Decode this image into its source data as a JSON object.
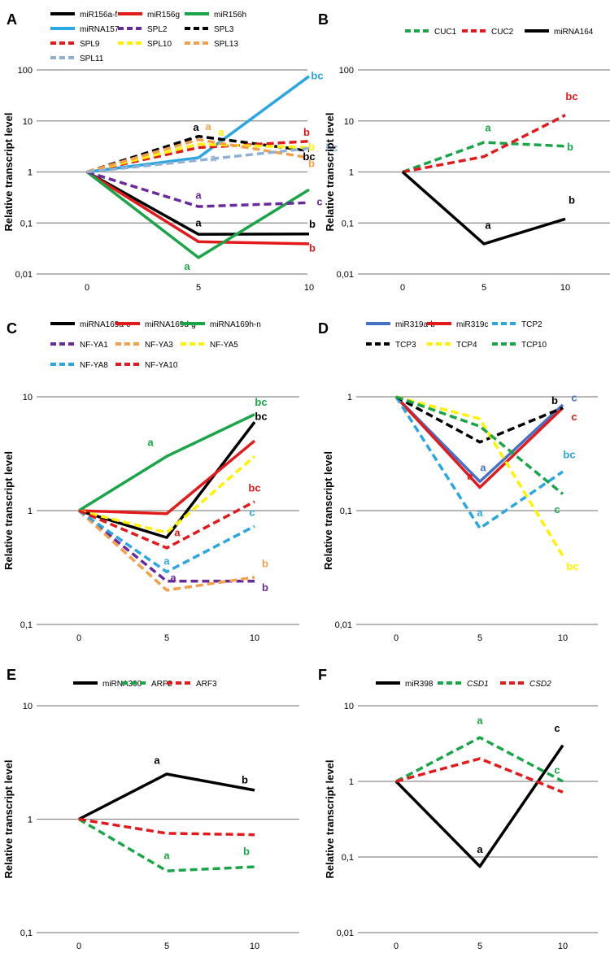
{
  "figure": {
    "y_axis_label": "Relative transcript level"
  },
  "colors": {
    "black": "#000000",
    "red": "#e31a1c",
    "green": "#1aa548",
    "lightblue": "#2aa7e0",
    "purple": "#6a2a9b",
    "yellow": "#fff200",
    "orange": "#f4a04a",
    "grayblue": "#8fb1d3",
    "steelblue": "#4472c4",
    "gridline": "#8c8c8c"
  },
  "chart_data": [
    {
      "panel": "A",
      "type": "line",
      "scale": "log",
      "x": [
        0,
        5,
        10
      ],
      "x_tick_labels": [
        "0",
        "5",
        "10"
      ],
      "y_ticks": [
        0.01,
        0.1,
        1,
        10,
        100
      ],
      "y_tick_labels": [
        "0,01",
        "0,1",
        "1",
        "10",
        "100"
      ],
      "ylim": [
        0.01,
        100
      ],
      "ylabel": "Relative transcript level",
      "series": [
        {
          "name": "miR156a-f",
          "values": [
            1,
            0.06,
            0.061
          ],
          "color": "black",
          "dash": false
        },
        {
          "name": "miR156g",
          "values": [
            1,
            0.043,
            0.039
          ],
          "color": "red",
          "dash": false
        },
        {
          "name": "miR156h",
          "values": [
            1,
            0.021,
            0.45
          ],
          "color": "green",
          "dash": false
        },
        {
          "name": "miRNA157",
          "values": [
            1,
            1.9,
            75
          ],
          "color": "lightblue",
          "dash": false
        },
        {
          "name": "SPL2",
          "values": [
            1,
            0.21,
            0.25
          ],
          "color": "purple",
          "dash": true
        },
        {
          "name": "SPL3",
          "values": [
            1,
            5.0,
            2.6
          ],
          "color": "black",
          "dash": true
        },
        {
          "name": "SPL9",
          "values": [
            1,
            3.0,
            4.0
          ],
          "color": "red",
          "dash": true
        },
        {
          "name": "SPL10",
          "values": [
            1,
            3.5,
            3.0
          ],
          "color": "yellow",
          "dash": true
        },
        {
          "name": "SPL13",
          "values": [
            1,
            4.3,
            1.9
          ],
          "color": "orange",
          "dash": true
        },
        {
          "name": "SPL11",
          "values": [
            1,
            1.7,
            2.9
          ],
          "color": "grayblue",
          "dash": true
        }
      ],
      "annotations": [
        {
          "text": "bc",
          "x": 10,
          "y": 75,
          "color": "lightblue",
          "dx": 10,
          "dy": 0
        },
        {
          "text": "a",
          "x": 5,
          "y": 5.0,
          "color": "black",
          "dx": -3,
          "dy": -10
        },
        {
          "text": "a",
          "x": 5,
          "y": 4.3,
          "color": "orange",
          "dx": 12,
          "dy": -15
        },
        {
          "text": "a",
          "x": 5,
          "y": 3.5,
          "color": "yellow",
          "dx": 28,
          "dy": -14
        },
        {
          "text": "a",
          "x": 5,
          "y": 1.7,
          "color": "grayblue",
          "dx": 18,
          "dy": -2
        },
        {
          "text": "b",
          "x": 10,
          "y": 4.0,
          "color": "red",
          "dx": -3,
          "dy": -10
        },
        {
          "text": "b",
          "x": 10,
          "y": 3.0,
          "color": "yellow",
          "dx": 3,
          "dy": 0
        },
        {
          "text": "bc",
          "x": 10,
          "y": 2.6,
          "color": "black",
          "dx": 0,
          "dy": 8
        },
        {
          "text": "bc",
          "x": 10,
          "y": 2.9,
          "color": "grayblue",
          "dx": 28,
          "dy": 0
        },
        {
          "text": "b",
          "x": 10,
          "y": 1.9,
          "color": "orange",
          "dx": 3,
          "dy": 8
        },
        {
          "text": "a",
          "x": 5,
          "y": 0.21,
          "color": "purple",
          "dx": 0,
          "dy": -13
        },
        {
          "text": "c",
          "x": 10,
          "y": 0.25,
          "color": "purple",
          "dx": 13,
          "dy": 0
        },
        {
          "text": "a",
          "x": 5,
          "y": 0.06,
          "color": "black",
          "dx": 0,
          "dy": -13
        },
        {
          "text": "b",
          "x": 10,
          "y": 0.061,
          "color": "black",
          "dx": 4,
          "dy": -11
        },
        {
          "text": "b",
          "x": 10,
          "y": 0.039,
          "color": "red",
          "dx": 4,
          "dy": 6
        },
        {
          "text": "a",
          "x": 5,
          "y": 0.021,
          "color": "green",
          "dx": -14,
          "dy": 12
        }
      ]
    },
    {
      "panel": "B",
      "type": "line",
      "scale": "log",
      "x": [
        0,
        5,
        10
      ],
      "x_tick_labels": [
        "0",
        "5",
        "10"
      ],
      "y_ticks": [
        0.01,
        0.1,
        1,
        10,
        100
      ],
      "y_tick_labels": [
        "0,01",
        "0,1",
        "1",
        "10",
        "100"
      ],
      "ylim": [
        0.01,
        100
      ],
      "ylabel": "Relative transcript level",
      "series": [
        {
          "name": "CUC1",
          "values": [
            1,
            3.8,
            3.2
          ],
          "color": "green",
          "dash": true
        },
        {
          "name": "CUC2",
          "values": [
            1,
            2.0,
            13
          ],
          "color": "red",
          "dash": true
        },
        {
          "name": "miRNA164",
          "values": [
            1,
            0.039,
            0.12
          ],
          "color": "black",
          "dash": false
        }
      ],
      "annotations": [
        {
          "text": "bc",
          "x": 10,
          "y": 13,
          "color": "red",
          "dx": 8,
          "dy": -22
        },
        {
          "text": "a",
          "x": 5,
          "y": 3.8,
          "color": "green",
          "dx": 5,
          "dy": -17
        },
        {
          "text": "b",
          "x": 10,
          "y": 3.2,
          "color": "green",
          "dx": 6,
          "dy": 2
        },
        {
          "text": "b",
          "x": 10,
          "y": 0.12,
          "color": "black",
          "dx": 8,
          "dy": -22
        },
        {
          "text": "a",
          "x": 5,
          "y": 0.039,
          "color": "black",
          "dx": 5,
          "dy": -22
        }
      ]
    },
    {
      "panel": "C",
      "type": "line",
      "scale": "log",
      "x": [
        0,
        5,
        10
      ],
      "x_tick_labels": [
        "0",
        "5",
        "10"
      ],
      "y_ticks": [
        0.1,
        1,
        10
      ],
      "y_tick_labels": [
        "0,1",
        "1",
        "10"
      ],
      "ylim": [
        0.1,
        10
      ],
      "ylabel": "Relative transcript level",
      "series": [
        {
          "name": "miRNA169a-c",
          "values": [
            1,
            0.58,
            6.0
          ],
          "color": "black",
          "dash": false
        },
        {
          "name": "miRNA169d-g",
          "values": [
            1,
            0.94,
            4.1
          ],
          "color": "red",
          "dash": false
        },
        {
          "name": "miRNA169h-n",
          "values": [
            1,
            3.0,
            7.0
          ],
          "color": "green",
          "dash": false
        },
        {
          "name": "NF-YA1",
          "values": [
            1,
            0.24,
            0.24
          ],
          "color": "purple",
          "dash": true
        },
        {
          "name": "NF-YA3",
          "values": [
            1,
            0.2,
            0.26
          ],
          "color": "orange",
          "dash": true
        },
        {
          "name": "NF-YA5",
          "values": [
            1,
            0.64,
            3.0
          ],
          "color": "yellow",
          "dash": true
        },
        {
          "name": "NF-YA8",
          "values": [
            1,
            0.29,
            0.73
          ],
          "color": "lightblue",
          "dash": true
        },
        {
          "name": "NF-YA10",
          "values": [
            1,
            0.47,
            1.2
          ],
          "color": "red",
          "dash": true
        }
      ],
      "annotations": [
        {
          "text": "bc",
          "x": 10,
          "y": 7.0,
          "color": "green",
          "dx": 8,
          "dy": -14
        },
        {
          "text": "bc",
          "x": 10,
          "y": 6.0,
          "color": "black",
          "dx": 8,
          "dy": -6
        },
        {
          "text": "a",
          "x": 5,
          "y": 3.0,
          "color": "green",
          "dx": -20,
          "dy": -16
        },
        {
          "text": "bc",
          "x": 10,
          "y": 1.2,
          "color": "red",
          "dx": 0,
          "dy": -16
        },
        {
          "text": "a",
          "x": 5,
          "y": 0.58,
          "color": "red",
          "dx": 13,
          "dy": -5
        },
        {
          "text": "c",
          "x": 10,
          "y": 0.73,
          "color": "lightblue",
          "dx": -3,
          "dy": -16
        },
        {
          "text": "a",
          "x": 5,
          "y": 0.29,
          "color": "lightblue",
          "dx": 0,
          "dy": -12
        },
        {
          "text": "a",
          "x": 5,
          "y": 0.24,
          "color": "purple",
          "dx": 8,
          "dy": -3
        },
        {
          "text": "b",
          "x": 10,
          "y": 0.26,
          "color": "orange",
          "dx": 13,
          "dy": -16
        },
        {
          "text": "b",
          "x": 10,
          "y": 0.24,
          "color": "purple",
          "dx": 13,
          "dy": 9
        }
      ]
    },
    {
      "panel": "D",
      "type": "line",
      "scale": "log",
      "x": [
        0,
        5,
        10
      ],
      "x_tick_labels": [
        "0",
        "5",
        "10"
      ],
      "y_ticks": [
        0.01,
        0.1,
        1
      ],
      "y_tick_labels": [
        "0,01",
        "0,1",
        "1"
      ],
      "ylim": [
        0.01,
        1
      ],
      "ylabel": "Relative transcript level",
      "series": [
        {
          "name": "miR319a-b",
          "values": [
            1,
            0.18,
            0.85
          ],
          "color": "steelblue",
          "dash": false
        },
        {
          "name": "miR319c",
          "values": [
            1,
            0.16,
            0.8
          ],
          "color": "red",
          "dash": false
        },
        {
          "name": "TCP2",
          "values": [
            1,
            0.07,
            0.22
          ],
          "color": "lightblue",
          "dash": true
        },
        {
          "name": "TCP3",
          "values": [
            1,
            0.4,
            0.8
          ],
          "color": "black",
          "dash": true
        },
        {
          "name": "TCP4",
          "values": [
            1,
            0.64,
            0.04
          ],
          "color": "yellow",
          "dash": true
        },
        {
          "name": "TCP10",
          "values": [
            1,
            0.55,
            0.14
          ],
          "color": "green",
          "dash": true
        }
      ],
      "annotations": [
        {
          "text": "b",
          "x": 10,
          "y": 0.8,
          "color": "black",
          "dx": -10,
          "dy": -8
        },
        {
          "text": "c",
          "x": 10,
          "y": 0.85,
          "color": "steelblue",
          "dx": 14,
          "dy": -8
        },
        {
          "text": "c",
          "x": 10,
          "y": 0.8,
          "color": "red",
          "dx": 14,
          "dy": 12
        },
        {
          "text": "bc",
          "x": 10,
          "y": 0.22,
          "color": "lightblue",
          "dx": 8,
          "dy": -20
        },
        {
          "text": "a",
          "x": 5,
          "y": 0.16,
          "color": "red",
          "dx": -12,
          "dy": -13
        },
        {
          "text": "a",
          "x": 5,
          "y": 0.18,
          "color": "steelblue",
          "dx": 4,
          "dy": -16
        },
        {
          "text": "c",
          "x": 10,
          "y": 0.14,
          "color": "green",
          "dx": -7,
          "dy": 20
        },
        {
          "text": "a",
          "x": 5,
          "y": 0.07,
          "color": "lightblue",
          "dx": 0,
          "dy": -18
        },
        {
          "text": "bc",
          "x": 10,
          "y": 0.04,
          "color": "yellow",
          "dx": 12,
          "dy": 14
        }
      ]
    },
    {
      "panel": "E",
      "type": "line",
      "scale": "log",
      "x": [
        0,
        5,
        10
      ],
      "x_tick_labels": [
        "0",
        "5",
        "10"
      ],
      "y_ticks": [
        0.1,
        1,
        10
      ],
      "y_tick_labels": [
        "0,1",
        "1",
        "10"
      ],
      "ylim": [
        0.1,
        10
      ],
      "ylabel": "Relative transcript level",
      "series": [
        {
          "name": "miRNA390",
          "values": [
            1,
            2.5,
            1.8
          ],
          "color": "black",
          "dash": false
        },
        {
          "name": "ARF2",
          "values": [
            1,
            0.35,
            0.38
          ],
          "color": "green",
          "dash": true
        },
        {
          "name": "ARF3",
          "values": [
            1,
            0.75,
            0.73
          ],
          "color": "red",
          "dash": true
        }
      ],
      "annotations": [
        {
          "text": "a",
          "x": 5,
          "y": 2.5,
          "color": "black",
          "dx": -12,
          "dy": -16
        },
        {
          "text": "b",
          "x": 10,
          "y": 1.8,
          "color": "black",
          "dx": -12,
          "dy": -12
        },
        {
          "text": "a",
          "x": 5,
          "y": 0.35,
          "color": "green",
          "dx": 0,
          "dy": -18
        },
        {
          "text": "b",
          "x": 10,
          "y": 0.38,
          "color": "green",
          "dx": -10,
          "dy": -18
        }
      ]
    },
    {
      "panel": "F",
      "type": "line",
      "scale": "log",
      "x": [
        0,
        5,
        10
      ],
      "x_tick_labels": [
        "0",
        "5",
        "10"
      ],
      "y_ticks": [
        0.01,
        0.1,
        1,
        10
      ],
      "y_tick_labels": [
        "0,01",
        "0,1",
        "1",
        "10"
      ],
      "ylim": [
        0.01,
        10
      ],
      "ylabel": "Relative transcript level",
      "series": [
        {
          "name": "miR398",
          "values": [
            1,
            0.075,
            3.0
          ],
          "color": "black",
          "dash": false,
          "italic": false
        },
        {
          "name": "CSD1",
          "values": [
            1,
            3.8,
            1.0
          ],
          "color": "green",
          "dash": true,
          "italic": true
        },
        {
          "name": "CSD2",
          "values": [
            1,
            2.0,
            0.72
          ],
          "color": "red",
          "dash": true,
          "italic": true
        }
      ],
      "annotations": [
        {
          "text": "a",
          "x": 5,
          "y": 3.8,
          "color": "green",
          "dx": 0,
          "dy": -20
        },
        {
          "text": "c",
          "x": 10,
          "y": 3.0,
          "color": "black",
          "dx": -7,
          "dy": -20
        },
        {
          "text": "c",
          "x": 10,
          "y": 1.0,
          "color": "green",
          "dx": -7,
          "dy": -13
        },
        {
          "text": "a",
          "x": 5,
          "y": 0.075,
          "color": "black",
          "dx": 0,
          "dy": -20
        }
      ]
    }
  ]
}
